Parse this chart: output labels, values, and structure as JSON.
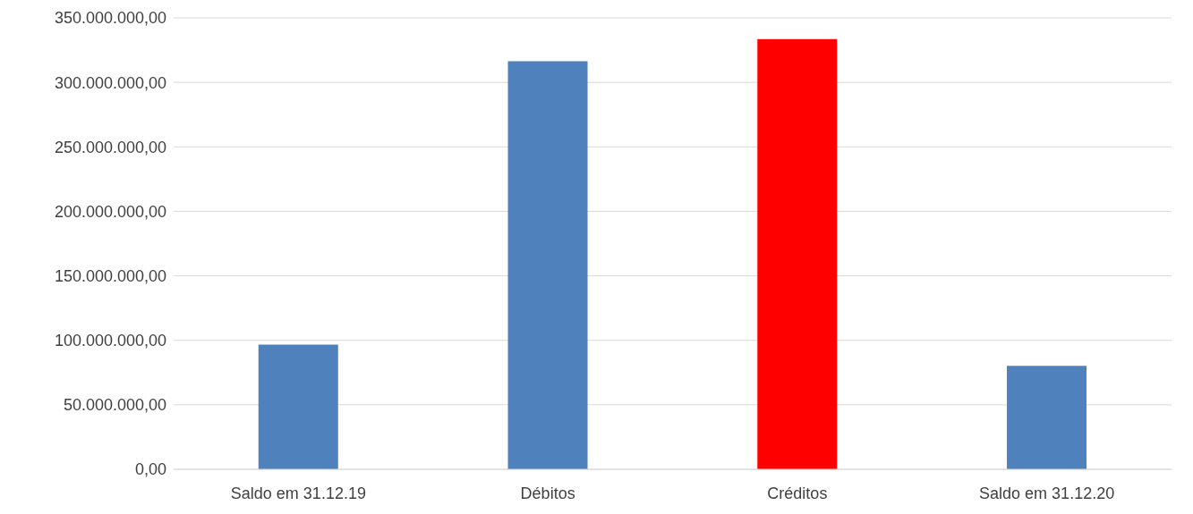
{
  "chart_data": {
    "type": "bar",
    "categories": [
      "Saldo em 31.12.19",
      "Débitos",
      "Créditos",
      "Saldo em 31.12.20"
    ],
    "values": [
      96600000,
      316400000,
      333600000,
      80200000
    ],
    "colors": [
      "#4f81bd",
      "#4f81bd",
      "#ff0000",
      "#4f81bd"
    ],
    "ylim": [
      0,
      350000000
    ],
    "yticks": [
      {
        "value": 0,
        "label": "0,00"
      },
      {
        "value": 50000000,
        "label": "50.000.000,00"
      },
      {
        "value": 100000000,
        "label": "100.000.000,00"
      },
      {
        "value": 150000000,
        "label": "150.000.000,00"
      },
      {
        "value": 200000000,
        "label": "200.000.000,00"
      },
      {
        "value": 250000000,
        "label": "250.000.000,00"
      },
      {
        "value": 300000000,
        "label": "300.000.000,00"
      },
      {
        "value": 350000000,
        "label": "350.000.000,00"
      }
    ],
    "grid": "y"
  }
}
